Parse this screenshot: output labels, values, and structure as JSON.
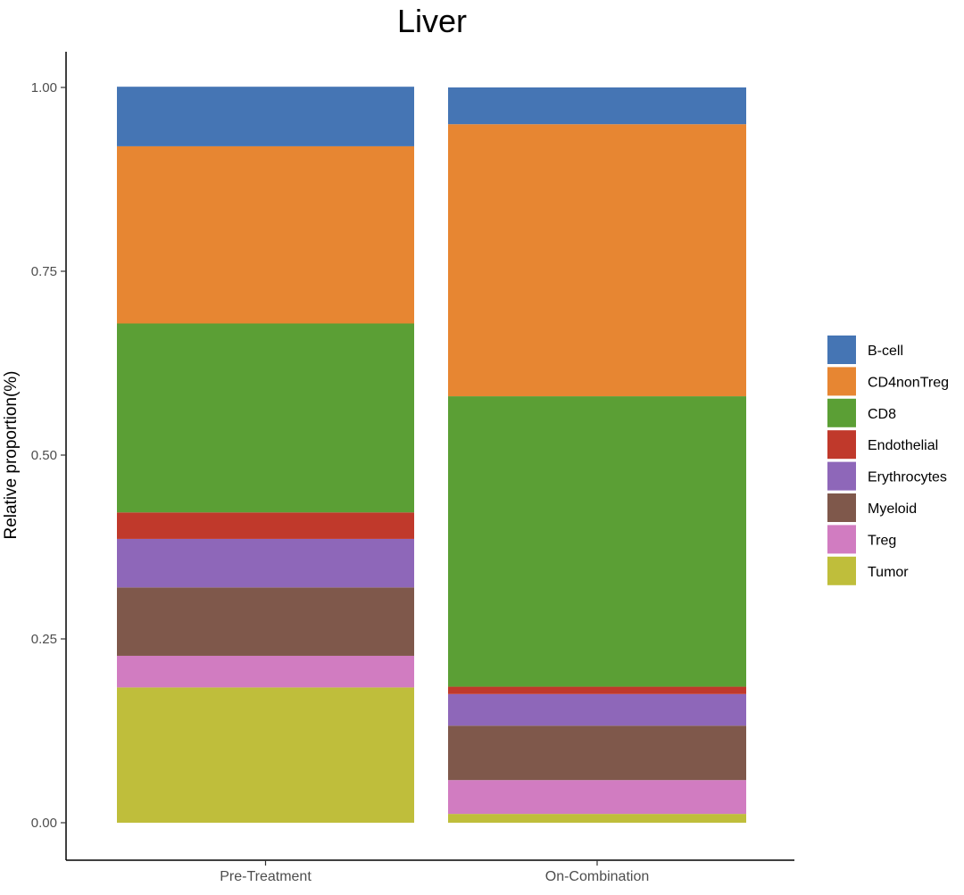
{
  "chart_data": {
    "type": "bar",
    "stacked": true,
    "title": "Liver",
    "xlabel": "",
    "ylabel": "Relative proportion(%)",
    "ylim": [
      0,
      1.05
    ],
    "yticks": [
      "0.00",
      "0.25",
      "0.50",
      "0.75",
      "1.00"
    ],
    "ytick_values": [
      0,
      0.25,
      0.5,
      0.75,
      1.0
    ],
    "categories": [
      "Pre-Treatment",
      "On-Combination"
    ],
    "legend_position": "right",
    "series": [
      {
        "name": "B-cell",
        "color": "#4575b4",
        "values": [
          0.081,
          0.05
        ]
      },
      {
        "name": "CD4nonTreg",
        "color": "#e78632",
        "values": [
          0.241,
          0.37
        ]
      },
      {
        "name": "CD8",
        "color": "#5b9f35",
        "values": [
          0.257,
          0.395
        ]
      },
      {
        "name": "Endothelial",
        "color": "#c0392b",
        "values": [
          0.036,
          0.01
        ]
      },
      {
        "name": "Erythrocytes",
        "color": "#8e67b9",
        "values": [
          0.066,
          0.043
        ]
      },
      {
        "name": "Myeloid",
        "color": "#7f584b",
        "values": [
          0.093,
          0.074
        ]
      },
      {
        "name": "Treg",
        "color": "#d17cc1",
        "values": [
          0.043,
          0.046
        ]
      },
      {
        "name": "Tumor",
        "color": "#bfbe3b",
        "values": [
          0.184,
          0.012
        ]
      }
    ]
  }
}
